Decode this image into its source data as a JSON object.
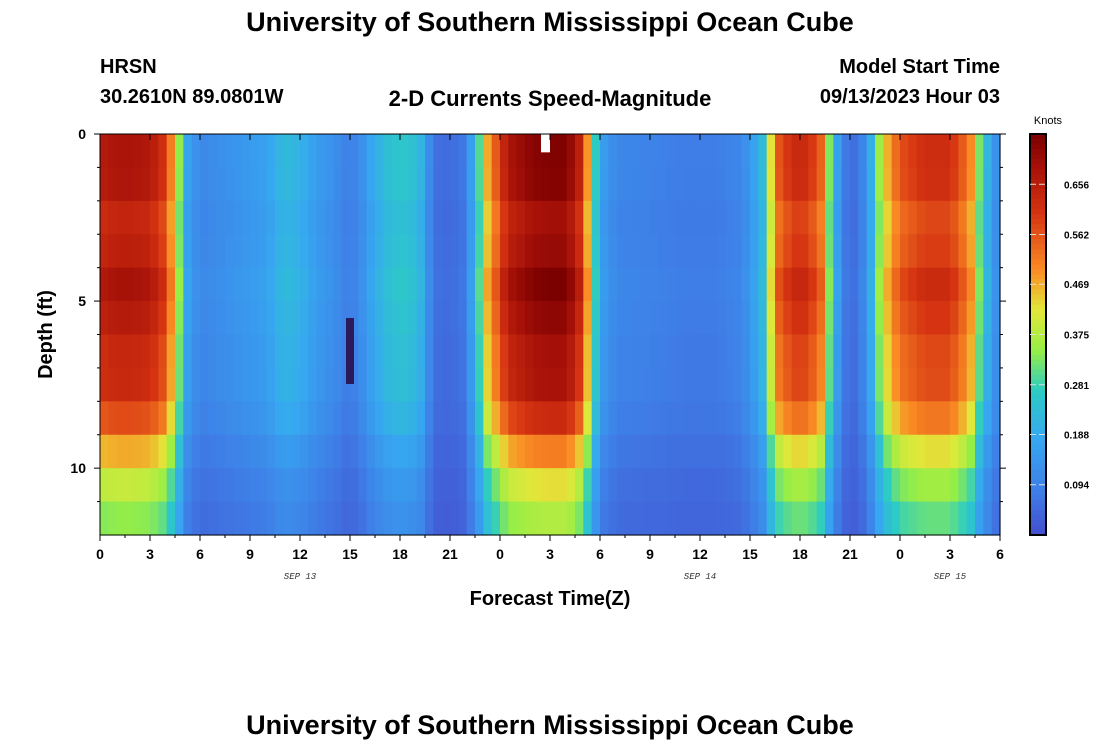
{
  "page": {
    "title": "University of Southern Mississippi Ocean Cube",
    "station": "HRSN",
    "location": "30.2610N  89.0801W",
    "subtitle": "2-D Currents Speed-Magnitude",
    "model_label": "Model Start Time",
    "model_time": "09/13/2023 Hour 03",
    "footer_title": "University of Southern Mississippi Ocean Cube"
  },
  "chart_data": {
    "type": "heatmap",
    "title": "2-D Currents Speed-Magnitude",
    "xlabel": "Forecast Time(Z)",
    "ylabel": "Depth (ft)",
    "x_range_hours": [
      0,
      54
    ],
    "x_ticks": [
      {
        "h": 0,
        "label": "0"
      },
      {
        "h": 3,
        "label": "3"
      },
      {
        "h": 6,
        "label": "6"
      },
      {
        "h": 9,
        "label": "9"
      },
      {
        "h": 12,
        "label": "12"
      },
      {
        "h": 15,
        "label": "15"
      },
      {
        "h": 18,
        "label": "18"
      },
      {
        "h": 21,
        "label": "21"
      },
      {
        "h": 24,
        "label": "0"
      },
      {
        "h": 27,
        "label": "3"
      },
      {
        "h": 30,
        "label": "6"
      },
      {
        "h": 33,
        "label": "9"
      },
      {
        "h": 36,
        "label": "12"
      },
      {
        "h": 39,
        "label": "15"
      },
      {
        "h": 42,
        "label": "18"
      },
      {
        "h": 45,
        "label": "21"
      },
      {
        "h": 48,
        "label": "0"
      },
      {
        "h": 51,
        "label": "3"
      },
      {
        "h": 54,
        "label": "6"
      }
    ],
    "date_labels": [
      {
        "h": 12,
        "label": "SEP 13"
      },
      {
        "h": 36,
        "label": "SEP 14"
      },
      {
        "h": 51,
        "label": "SEP 15"
      }
    ],
    "y_range_ft": [
      0,
      12
    ],
    "y_ticks": [
      {
        "v": 0,
        "label": "0"
      },
      {
        "v": 5,
        "label": "5"
      },
      {
        "v": 10,
        "label": "10"
      }
    ],
    "colorbar": {
      "label": "Knots",
      "range": [
        0.0,
        0.75
      ],
      "ticks": [
        "0.656",
        "0.562",
        "0.469",
        "0.375",
        "0.281",
        "0.188",
        "0.094"
      ],
      "tick_values": [
        0.656,
        0.562,
        0.469,
        0.375,
        0.281,
        0.188,
        0.094
      ]
    },
    "time_profile_knots": [
      [
        0,
        0.64
      ],
      [
        1,
        0.66
      ],
      [
        2,
        0.66
      ],
      [
        3,
        0.65
      ],
      [
        4,
        0.58
      ],
      [
        4.7,
        0.35
      ],
      [
        5.2,
        0.17
      ],
      [
        6,
        0.1
      ],
      [
        8,
        0.13
      ],
      [
        10,
        0.16
      ],
      [
        11,
        0.22
      ],
      [
        12,
        0.2
      ],
      [
        13,
        0.15
      ],
      [
        14,
        0.12
      ],
      [
        15,
        0.08
      ],
      [
        15.7,
        0.12
      ],
      [
        16.5,
        0.19
      ],
      [
        17.5,
        0.24
      ],
      [
        18.5,
        0.25
      ],
      [
        19.3,
        0.2
      ],
      [
        20,
        0.06
      ],
      [
        21,
        0.05
      ],
      [
        21.8,
        0.07
      ],
      [
        22.5,
        0.2
      ],
      [
        23.2,
        0.45
      ],
      [
        24.5,
        0.66
      ],
      [
        26,
        0.71
      ],
      [
        27,
        0.72
      ],
      [
        28,
        0.72
      ],
      [
        29,
        0.6
      ],
      [
        29.6,
        0.3
      ],
      [
        30.2,
        0.15
      ],
      [
        31,
        0.1
      ],
      [
        33,
        0.09
      ],
      [
        35,
        0.08
      ],
      [
        37,
        0.08
      ],
      [
        38.5,
        0.1
      ],
      [
        39.7,
        0.2
      ],
      [
        40.2,
        0.4
      ],
      [
        40.8,
        0.56
      ],
      [
        42,
        0.62
      ],
      [
        43.2,
        0.55
      ],
      [
        43.8,
        0.3
      ],
      [
        44.5,
        0.08
      ],
      [
        45.5,
        0.05
      ],
      [
        46.3,
        0.2
      ],
      [
        47,
        0.42
      ],
      [
        48,
        0.55
      ],
      [
        49.5,
        0.6
      ],
      [
        51,
        0.6
      ],
      [
        52.2,
        0.5
      ],
      [
        52.8,
        0.3
      ],
      [
        53.5,
        0.15
      ],
      [
        54,
        0.1
      ]
    ],
    "missing_cells": [
      {
        "h": 26.7,
        "depth_ft": 0.1
      }
    ],
    "legend_position": "right"
  }
}
